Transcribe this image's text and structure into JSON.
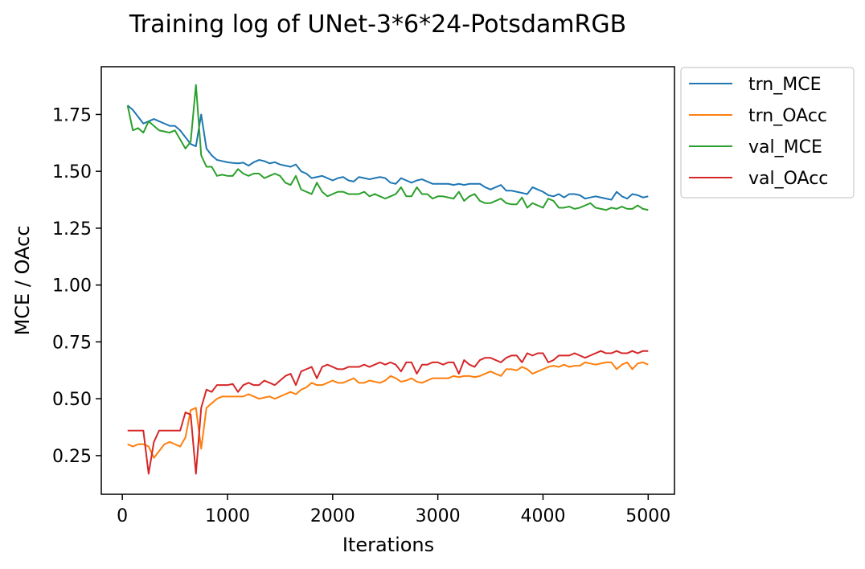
{
  "chart_data": {
    "type": "line",
    "title": "Training log of UNet-3*6*24-PotsdamRGB",
    "xlabel": "Iterations",
    "ylabel": "MCE / OAcc",
    "xlim": [
      -200,
      5250
    ],
    "ylim": [
      0.08,
      1.96
    ],
    "xticks": [
      0,
      1000,
      2000,
      3000,
      4000,
      5000
    ],
    "yticks": [
      0.25,
      0.5,
      0.75,
      1.0,
      1.25,
      1.5,
      1.75
    ],
    "ytick_labels": [
      "0.25",
      "0.50",
      "0.75",
      "1.00",
      "1.25",
      "1.50",
      "1.75"
    ],
    "grid": false,
    "legend_position": "outside-top-right",
    "x": [
      50,
      100,
      150,
      200,
      250,
      300,
      350,
      400,
      450,
      500,
      550,
      600,
      650,
      700,
      750,
      800,
      850,
      900,
      950,
      1000,
      1050,
      1100,
      1150,
      1200,
      1250,
      1300,
      1350,
      1400,
      1450,
      1500,
      1550,
      1600,
      1650,
      1700,
      1750,
      1800,
      1850,
      1900,
      1950,
      2000,
      2050,
      2100,
      2150,
      2200,
      2250,
      2300,
      2350,
      2400,
      2450,
      2500,
      2550,
      2600,
      2650,
      2700,
      2750,
      2800,
      2850,
      2900,
      2950,
      3000,
      3050,
      3100,
      3150,
      3200,
      3250,
      3300,
      3350,
      3400,
      3450,
      3500,
      3550,
      3600,
      3650,
      3700,
      3750,
      3800,
      3850,
      3900,
      3950,
      4000,
      4050,
      4100,
      4150,
      4200,
      4250,
      4300,
      4350,
      4400,
      4450,
      4500,
      4550,
      4600,
      4650,
      4700,
      4750,
      4800,
      4850,
      4900,
      4950,
      5000
    ],
    "series": [
      {
        "name": "trn_MCE",
        "color": "#1f77b4",
        "values": [
          1.79,
          1.77,
          1.74,
          1.71,
          1.72,
          1.73,
          1.72,
          1.71,
          1.7,
          1.7,
          1.68,
          1.65,
          1.62,
          1.61,
          1.75,
          1.6,
          1.57,
          1.55,
          1.545,
          1.54,
          1.537,
          1.535,
          1.538,
          1.525,
          1.54,
          1.55,
          1.545,
          1.535,
          1.54,
          1.53,
          1.525,
          1.52,
          1.53,
          1.5,
          1.49,
          1.47,
          1.475,
          1.48,
          1.47,
          1.46,
          1.47,
          1.475,
          1.46,
          1.455,
          1.475,
          1.47,
          1.465,
          1.47,
          1.475,
          1.47,
          1.45,
          1.445,
          1.47,
          1.46,
          1.45,
          1.46,
          1.465,
          1.455,
          1.445,
          1.445,
          1.445,
          1.445,
          1.44,
          1.445,
          1.44,
          1.445,
          1.445,
          1.445,
          1.43,
          1.42,
          1.43,
          1.44,
          1.415,
          1.415,
          1.41,
          1.405,
          1.4,
          1.43,
          1.42,
          1.41,
          1.395,
          1.39,
          1.4,
          1.385,
          1.4,
          1.4,
          1.395,
          1.38,
          1.385,
          1.39,
          1.385,
          1.38,
          1.375,
          1.41,
          1.39,
          1.38,
          1.4,
          1.395,
          1.385,
          1.39
        ]
      },
      {
        "name": "trn_OAcc",
        "color": "#ff7f0e",
        "values": [
          0.3,
          0.29,
          0.3,
          0.3,
          0.29,
          0.24,
          0.27,
          0.3,
          0.31,
          0.3,
          0.29,
          0.33,
          0.45,
          0.46,
          0.28,
          0.46,
          0.48,
          0.5,
          0.51,
          0.51,
          0.51,
          0.51,
          0.51,
          0.52,
          0.51,
          0.5,
          0.505,
          0.51,
          0.5,
          0.51,
          0.52,
          0.53,
          0.52,
          0.54,
          0.55,
          0.57,
          0.56,
          0.56,
          0.57,
          0.58,
          0.57,
          0.57,
          0.58,
          0.59,
          0.57,
          0.57,
          0.58,
          0.575,
          0.57,
          0.58,
          0.6,
          0.59,
          0.575,
          0.58,
          0.59,
          0.575,
          0.57,
          0.58,
          0.59,
          0.59,
          0.59,
          0.59,
          0.6,
          0.595,
          0.6,
          0.6,
          0.595,
          0.6,
          0.61,
          0.62,
          0.61,
          0.6,
          0.63,
          0.63,
          0.625,
          0.64,
          0.63,
          0.61,
          0.62,
          0.63,
          0.64,
          0.645,
          0.64,
          0.65,
          0.64,
          0.645,
          0.645,
          0.66,
          0.655,
          0.65,
          0.655,
          0.66,
          0.66,
          0.63,
          0.65,
          0.66,
          0.63,
          0.655,
          0.66,
          0.65
        ]
      },
      {
        "name": "val_MCE",
        "color": "#2ca02c",
        "values": [
          1.79,
          1.68,
          1.69,
          1.67,
          1.72,
          1.7,
          1.68,
          1.675,
          1.67,
          1.68,
          1.64,
          1.6,
          1.63,
          1.88,
          1.57,
          1.52,
          1.52,
          1.48,
          1.485,
          1.48,
          1.48,
          1.51,
          1.49,
          1.48,
          1.49,
          1.49,
          1.47,
          1.48,
          1.49,
          1.48,
          1.45,
          1.44,
          1.48,
          1.42,
          1.41,
          1.4,
          1.45,
          1.41,
          1.39,
          1.4,
          1.41,
          1.41,
          1.4,
          1.4,
          1.4,
          1.41,
          1.39,
          1.4,
          1.39,
          1.38,
          1.39,
          1.4,
          1.43,
          1.39,
          1.39,
          1.43,
          1.4,
          1.4,
          1.38,
          1.39,
          1.39,
          1.385,
          1.38,
          1.41,
          1.37,
          1.39,
          1.4,
          1.37,
          1.36,
          1.36,
          1.37,
          1.38,
          1.36,
          1.355,
          1.355,
          1.385,
          1.34,
          1.36,
          1.35,
          1.34,
          1.38,
          1.37,
          1.34,
          1.34,
          1.345,
          1.335,
          1.34,
          1.35,
          1.36,
          1.34,
          1.335,
          1.33,
          1.34,
          1.335,
          1.345,
          1.335,
          1.335,
          1.35,
          1.335,
          1.33
        ]
      },
      {
        "name": "val_OAcc",
        "color": "#d62728",
        "values": [
          0.36,
          0.36,
          0.36,
          0.36,
          0.17,
          0.31,
          0.36,
          0.36,
          0.36,
          0.36,
          0.36,
          0.44,
          0.43,
          0.17,
          0.46,
          0.54,
          0.53,
          0.56,
          0.56,
          0.56,
          0.565,
          0.53,
          0.56,
          0.57,
          0.56,
          0.56,
          0.58,
          0.57,
          0.56,
          0.58,
          0.6,
          0.61,
          0.56,
          0.62,
          0.63,
          0.64,
          0.59,
          0.64,
          0.65,
          0.64,
          0.63,
          0.63,
          0.64,
          0.64,
          0.64,
          0.65,
          0.64,
          0.65,
          0.66,
          0.65,
          0.66,
          0.65,
          0.62,
          0.66,
          0.66,
          0.61,
          0.65,
          0.65,
          0.66,
          0.66,
          0.65,
          0.66,
          0.66,
          0.61,
          0.67,
          0.65,
          0.64,
          0.67,
          0.68,
          0.68,
          0.67,
          0.66,
          0.68,
          0.69,
          0.69,
          0.66,
          0.7,
          0.69,
          0.7,
          0.7,
          0.66,
          0.67,
          0.69,
          0.69,
          0.69,
          0.7,
          0.69,
          0.68,
          0.69,
          0.7,
          0.71,
          0.7,
          0.7,
          0.71,
          0.7,
          0.7,
          0.71,
          0.7,
          0.71,
          0.71
        ]
      }
    ]
  }
}
